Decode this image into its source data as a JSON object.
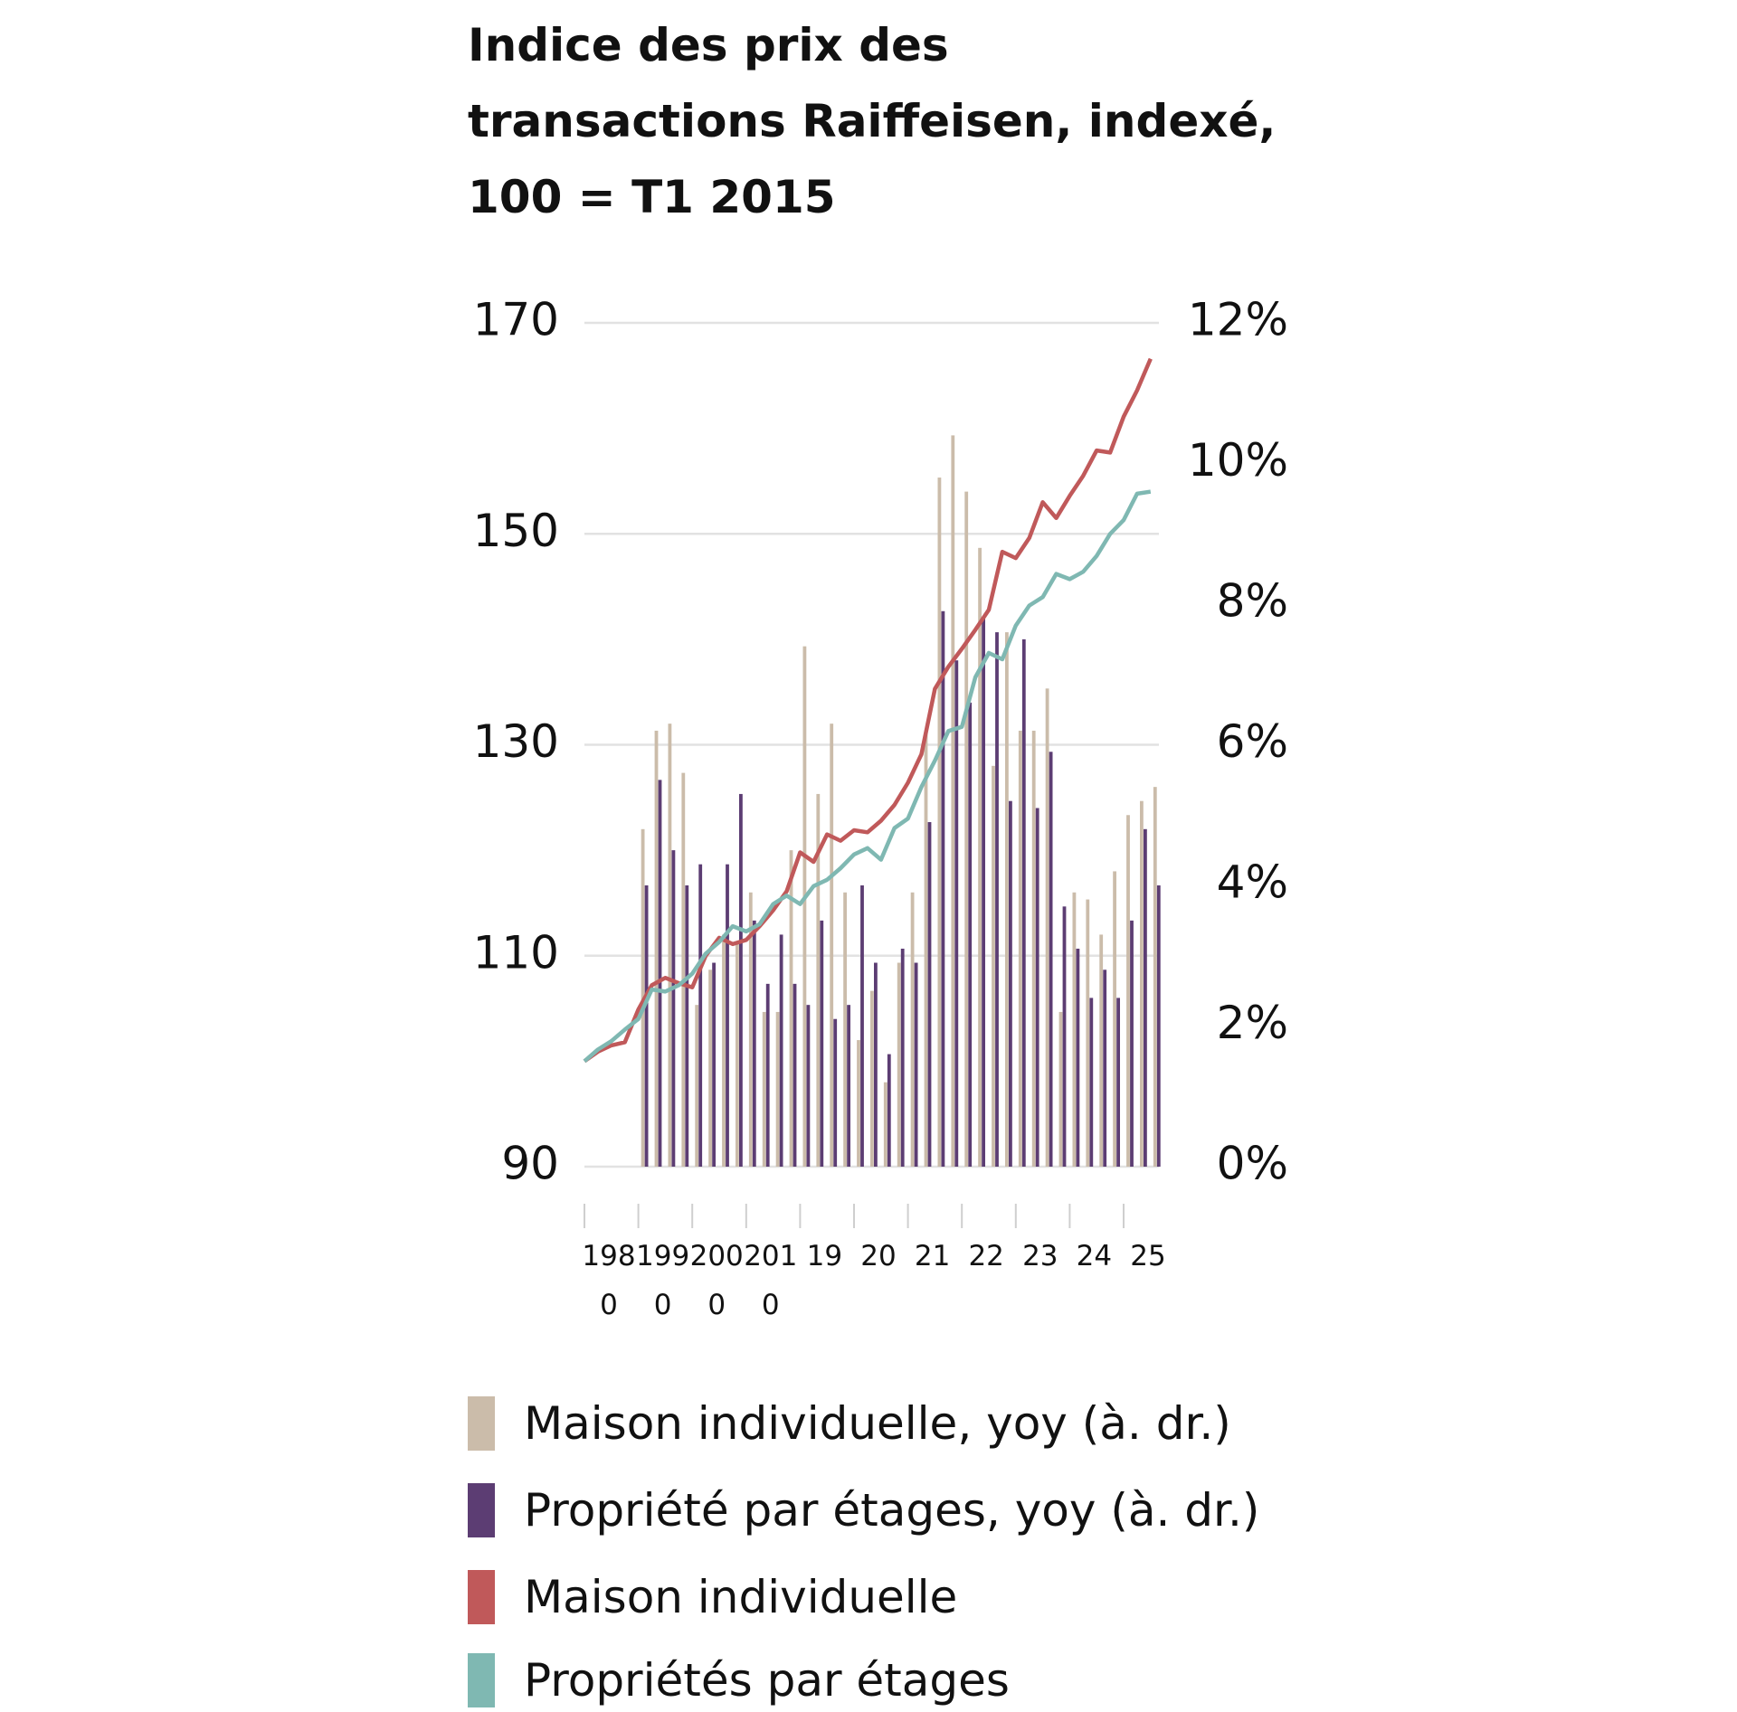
{
  "chart_data": {
    "type": "combo",
    "title": "Indice des prix des transactions Raiffeisen, indexé, 100 = T1 2015",
    "categories": [
      "1980",
      null,
      null,
      null,
      "1990",
      null,
      null,
      null,
      "2000",
      null,
      null,
      null,
      "2010",
      null,
      null,
      null,
      "19",
      null,
      null,
      null,
      "20",
      null,
      null,
      null,
      "21",
      null,
      null,
      null,
      "22",
      null,
      null,
      null,
      "23",
      null,
      null,
      null,
      "24",
      null,
      null,
      null,
      "25",
      null,
      null
    ],
    "ylim": [
      90,
      170
    ],
    "yticks": [
      90,
      110,
      130,
      150,
      170
    ],
    "y2lim": [
      0,
      12
    ],
    "y2ticks": [
      {
        "value": 0,
        "label": "0%"
      },
      {
        "value": 2,
        "label": "2%"
      },
      {
        "value": 4,
        "label": "4%"
      },
      {
        "value": 6,
        "label": "6%"
      },
      {
        "value": 8,
        "label": "8%"
      },
      {
        "value": 10,
        "label": "10%"
      },
      {
        "value": 12,
        "label": "12%"
      }
    ],
    "grid": true,
    "legend": "bottom",
    "series": [
      {
        "name": "Maison individuelle, yoy (à. dr.)",
        "type": "bar",
        "axis": "y2",
        "color": "#cbbcaa",
        "values": [
          null,
          null,
          null,
          null,
          4.8,
          6.2,
          6.3,
          5.6,
          2.3,
          2.8,
          3.3,
          3.2,
          3.9,
          2.2,
          2.2,
          4.5,
          7.4,
          5.3,
          6.3,
          3.9,
          1.8,
          2.5,
          1.2,
          2.9,
          3.9,
          6.2,
          9.8,
          10.4,
          9.6,
          8.8,
          5.7,
          7.6,
          6.2,
          6.2,
          6.8,
          2.2,
          3.9,
          3.8,
          3.3,
          4.2,
          5.0,
          5.2,
          5.4
        ]
      },
      {
        "name": "Propriété par étages, yoy (à. dr.)",
        "type": "bar",
        "axis": "y2",
        "color": "#5c3d73",
        "values": [
          null,
          null,
          null,
          null,
          4.0,
          5.5,
          4.5,
          4.0,
          4.3,
          2.9,
          4.3,
          5.3,
          3.5,
          2.6,
          3.3,
          2.6,
          2.3,
          3.5,
          2.1,
          2.3,
          4.0,
          2.9,
          1.6,
          3.1,
          2.9,
          4.9,
          7.9,
          7.2,
          6.6,
          7.8,
          7.6,
          5.2,
          7.5,
          5.1,
          5.9,
          3.7,
          3.1,
          2.4,
          2.8,
          2.4,
          3.5,
          4.8,
          4.0
        ]
      },
      {
        "name": "Maison individuelle",
        "type": "line",
        "color": "#c0595a",
        "values": [
          100,
          100.9,
          101.5,
          101.8,
          104.9,
          107.2,
          107.9,
          107.4,
          107.0,
          110.0,
          111.7,
          111.1,
          111.5,
          112.8,
          114.3,
          116.1,
          119.8,
          118.9,
          121.5,
          120.9,
          121.9,
          121.7,
          122.8,
          124.3,
          126.4,
          129.1,
          135.3,
          137.4,
          139.1,
          140.9,
          142.8,
          148.3,
          147.7,
          149.6,
          153.0,
          151.5,
          153.6,
          155.5,
          157.9,
          157.7,
          161.1,
          163.6,
          166.6
        ]
      },
      {
        "name": "Propriétés par étages",
        "type": "line",
        "color": "#7fb8b2",
        "values": [
          100,
          101.1,
          101.9,
          103.0,
          104.0,
          106.8,
          106.6,
          107.2,
          108.3,
          110.2,
          111.3,
          112.8,
          112.3,
          113.0,
          114.9,
          115.7,
          114.9,
          116.6,
          117.2,
          118.3,
          119.6,
          120.2,
          119.1,
          122.1,
          123.0,
          126.0,
          128.5,
          131.3,
          131.7,
          136.4,
          138.7,
          138.1,
          141.3,
          143.2,
          144.0,
          146.2,
          145.7,
          146.4,
          147.9,
          150.0,
          151.3,
          153.8,
          154.0
        ]
      }
    ]
  }
}
